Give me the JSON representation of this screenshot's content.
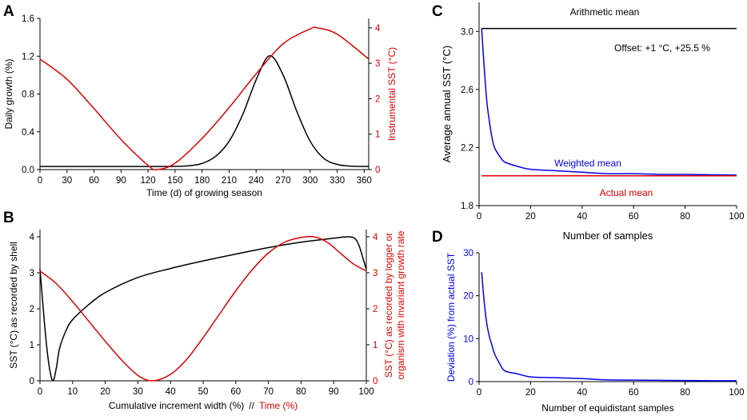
{
  "colors": {
    "black": "#000000",
    "red": "#e00000",
    "blue": "#0000ee",
    "axis": "#000000"
  },
  "panel_labels": {
    "A": "A",
    "B": "B",
    "C": "C",
    "D": "D"
  },
  "chart_data": [
    {
      "id": "A",
      "type": "line",
      "title": "",
      "xlabel": "Time (d) of growing season",
      "ylabel_left": "Daily growth (%)",
      "ylabel_right": "Instrumental SST (°C)",
      "xlim": [
        0,
        365
      ],
      "ylim_left": [
        0,
        1.6
      ],
      "ylim_right": [
        0,
        4.2667
      ],
      "xticks": [
        0,
        30,
        60,
        90,
        120,
        150,
        180,
        210,
        240,
        270,
        300,
        330,
        360
      ],
      "xtick_labels": [
        "0",
        "30",
        "60",
        "90",
        "120",
        "150",
        "180",
        "210",
        "240",
        "270",
        "300",
        "330",
        "360"
      ],
      "yticks_left": [
        0.0,
        0.4,
        0.8,
        1.2,
        1.6
      ],
      "ytick_labels_left": [
        "0.0",
        "0.4",
        "0.8",
        "1.2",
        "1.6"
      ],
      "yticks_right": [
        0,
        1,
        2,
        3,
        4
      ],
      "ytick_labels_right": [
        "0",
        "1",
        "2",
        "3",
        "4"
      ],
      "series": [
        {
          "name": "Daily growth",
          "axis": "left",
          "color": "black",
          "x": [
            0,
            60,
            120,
            150,
            165,
            180,
            195,
            210,
            225,
            240,
            255,
            270,
            285,
            300,
            315,
            330,
            345,
            365
          ],
          "y": [
            0.033,
            0.033,
            0.033,
            0.034,
            0.04,
            0.065,
            0.14,
            0.3,
            0.58,
            0.95,
            1.205,
            1.0,
            0.62,
            0.3,
            0.12,
            0.055,
            0.037,
            0.033
          ]
        },
        {
          "name": "Instrumental SST",
          "axis": "right",
          "color": "red",
          "x": [
            0,
            30,
            60,
            90,
            120,
            130,
            150,
            180,
            210,
            240,
            270,
            300,
            308,
            330,
            365
          ],
          "y": [
            3.12,
            2.55,
            1.72,
            0.85,
            0.12,
            0.0,
            0.18,
            0.88,
            1.75,
            2.7,
            3.55,
            3.97,
            4.0,
            3.82,
            3.12
          ]
        }
      ]
    },
    {
      "id": "B",
      "type": "line",
      "title": "",
      "xlabel": "Cumulative increment width (%)",
      "xlabel_sep": "//",
      "xlabel_red": "Time (%)",
      "ylabel_left": "SST (°C) as recorded by shell",
      "ylabel_right_1": "SST (°C) as recorded by logger or",
      "ylabel_right_2": "organism with invariant growth rate",
      "xlim": [
        0,
        100
      ],
      "ylim_left": [
        0,
        4.2
      ],
      "ylim_right": [
        0,
        4.2
      ],
      "xticks": [
        0,
        10,
        20,
        30,
        40,
        50,
        60,
        70,
        80,
        90,
        100
      ],
      "xtick_labels": [
        "0",
        "10",
        "20",
        "30",
        "40",
        "50",
        "60",
        "70",
        "80",
        "90",
        "100"
      ],
      "yticks_left": [
        0,
        1,
        2,
        3,
        4
      ],
      "ytick_labels_left": [
        "0",
        "1",
        "2",
        "3",
        "4"
      ],
      "yticks_right": [
        0,
        1,
        2,
        3,
        4
      ],
      "ytick_labels_right": [
        "0",
        "1",
        "2",
        "3",
        "4"
      ],
      "series": [
        {
          "name": "SST as recorded by shell",
          "axis": "left",
          "color": "black",
          "x": [
            0,
            1,
            2,
            3,
            4,
            5,
            6,
            8,
            10,
            15,
            20,
            30,
            40,
            50,
            60,
            70,
            80,
            90,
            94,
            96,
            97,
            98,
            99,
            100
          ],
          "y": [
            3.1,
            2.0,
            1.0,
            0.3,
            0.0,
            0.35,
            0.9,
            1.4,
            1.7,
            2.12,
            2.45,
            2.87,
            3.12,
            3.33,
            3.52,
            3.7,
            3.85,
            3.96,
            4.0,
            3.98,
            3.9,
            3.7,
            3.4,
            3.1
          ]
        },
        {
          "name": "SST by logger / invariant growth",
          "axis": "right",
          "color": "red",
          "x": [
            0,
            5,
            10,
            15,
            20,
            25,
            30,
            34.5,
            40,
            45,
            50,
            55,
            60,
            65,
            70,
            75,
            80,
            84,
            88,
            92,
            96,
            100
          ],
          "y": [
            3.05,
            2.7,
            2.2,
            1.65,
            1.1,
            0.58,
            0.15,
            0.0,
            0.18,
            0.6,
            1.2,
            1.85,
            2.5,
            3.08,
            3.55,
            3.85,
            3.98,
            4.0,
            3.85,
            3.55,
            3.25,
            3.05
          ]
        }
      ]
    },
    {
      "id": "C",
      "type": "line",
      "title": "",
      "xlabel": "Number of samples",
      "ylabel": "Average annual SST (°C)",
      "xlim": [
        0,
        100
      ],
      "ylim": [
        1.8,
        3.2
      ],
      "xticks": [
        0,
        20,
        40,
        60,
        80,
        100
      ],
      "xtick_labels": [
        "0",
        "20",
        "40",
        "60",
        "80",
        "100"
      ],
      "yticks": [
        1.8,
        2.2,
        2.6,
        3.0
      ],
      "ytick_labels": [
        "1.8",
        "2.2",
        "2.6",
        "3.0"
      ],
      "annotations": {
        "arithmetic_mean": "Arithmetic mean",
        "offset": "Offset: +1 °C, +25.5 %",
        "weighted_mean": "Weighted mean",
        "actual_mean": "Actual mean"
      },
      "series": [
        {
          "name": "Arithmetic mean",
          "color": "black",
          "x": [
            1,
            100
          ],
          "y": [
            3.02,
            3.02
          ]
        },
        {
          "name": "Weighted mean",
          "color": "blue",
          "x": [
            1,
            2,
            3,
            4,
            5,
            6,
            8,
            10,
            15,
            20,
            30,
            40,
            50,
            60,
            70,
            80,
            90,
            100
          ],
          "y": [
            3.02,
            2.75,
            2.52,
            2.38,
            2.27,
            2.2,
            2.14,
            2.1,
            2.07,
            2.05,
            2.04,
            2.03,
            2.02,
            2.02,
            2.015,
            2.015,
            2.012,
            2.01
          ]
        },
        {
          "name": "Actual mean",
          "color": "red",
          "x": [
            1,
            100
          ],
          "y": [
            2.005,
            2.005
          ]
        }
      ]
    },
    {
      "id": "D",
      "type": "line",
      "title": "",
      "xlabel": "Number of equidistant samples",
      "ylabel": "Deviation (%) from actual SST",
      "xlim": [
        0,
        100
      ],
      "ylim": [
        0,
        30
      ],
      "xticks": [
        0,
        20,
        40,
        60,
        80,
        100
      ],
      "xtick_labels": [
        "0",
        "20",
        "40",
        "60",
        "80",
        "100"
      ],
      "yticks": [
        0,
        10,
        20,
        30
      ],
      "ytick_labels": [
        "0",
        "10",
        "20",
        "30"
      ],
      "series": [
        {
          "name": "Deviation",
          "color": "blue",
          "x": [
            1,
            2,
            3,
            4,
            5,
            6,
            8,
            10,
            15,
            20,
            30,
            40,
            50,
            60,
            70,
            80,
            90,
            100
          ],
          "y": [
            25.5,
            18.5,
            13.5,
            10.5,
            8.5,
            6.5,
            4.2,
            2.5,
            1.8,
            1.1,
            0.9,
            0.7,
            0.4,
            0.35,
            0.3,
            0.25,
            0.22,
            0.2
          ]
        }
      ]
    }
  ]
}
